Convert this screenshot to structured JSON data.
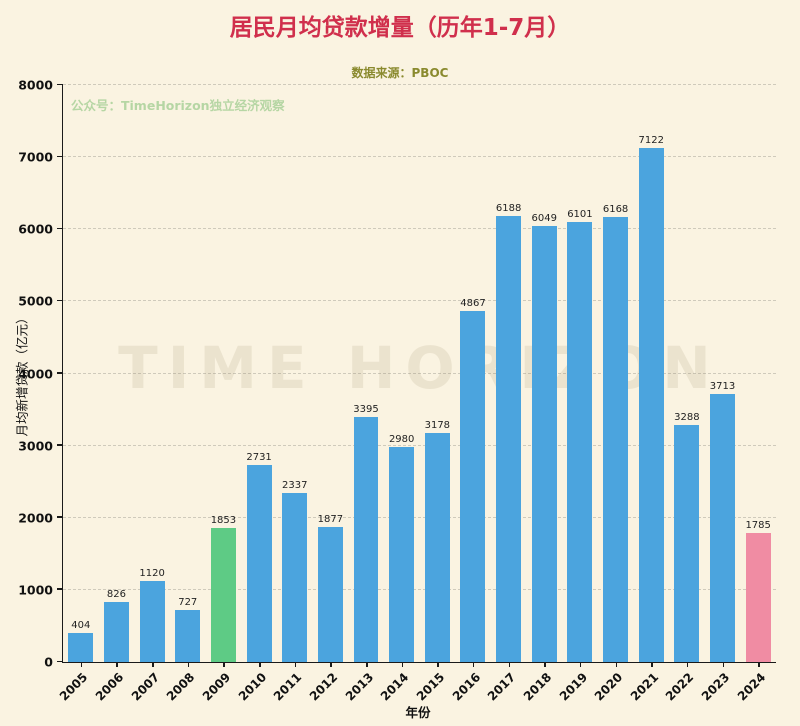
{
  "title": "居民月均贷款增量（历年1-7月）",
  "source": "数据来源：PBOC",
  "watermark_small": "公众号：TimeHorizon独立经济观察",
  "watermark_large": "TIME HORIZON",
  "colors": {
    "background": "#faf3e1",
    "title": "#d02f4c",
    "source": "#8a8a2e",
    "watermark_small": "#b6d6a4",
    "axis": "#1a1a1a",
    "grid": "#cfcabb",
    "bar_default": "#4ba4de",
    "bar_highlight_green": "#5ecb85",
    "bar_highlight_pink": "#f08ca3"
  },
  "chart_data": {
    "type": "bar",
    "title": "居民月均贷款增量（历年1-7月）",
    "subtitle": "数据来源：PBOC",
    "xlabel": "年份",
    "ylabel": "月均新增贷款（亿元）",
    "ylim": [
      0,
      8000
    ],
    "ytick_step": 1000,
    "grid": "dashed-horizontal",
    "legend": "none",
    "categories": [
      "2005",
      "2006",
      "2007",
      "2008",
      "2009",
      "2010",
      "2011",
      "2012",
      "2013",
      "2014",
      "2015",
      "2016",
      "2017",
      "2018",
      "2019",
      "2020",
      "2021",
      "2022",
      "2023",
      "2024"
    ],
    "values": [
      404,
      826,
      1120,
      727,
      1853,
      2731,
      2337,
      1877,
      3395,
      2980,
      3178,
      4867,
      6188,
      6049,
      6101,
      6168,
      7122,
      3288,
      3713,
      1785
    ],
    "bar_colors": {
      "default": "#4ba4de",
      "2009": "#5ecb85",
      "2024": "#f08ca3"
    }
  }
}
